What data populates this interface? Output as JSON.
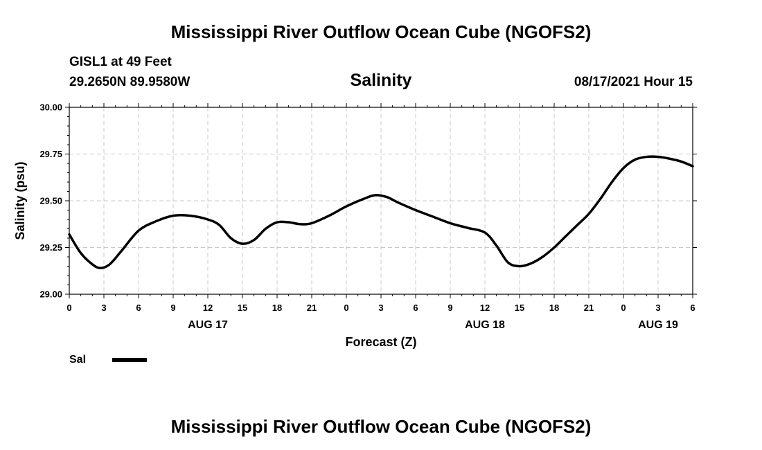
{
  "chart_data": {
    "type": "line",
    "title": "Mississippi River Outflow Ocean Cube (NGOFS2)",
    "footer_title": "Mississippi River Outflow Ocean Cube (NGOFS2)",
    "station": "GISL1 at 49 Feet",
    "location": "29.2650N  89.9580W",
    "variable": "Salinity",
    "forecast_time": "08/17/2021 Hour 15",
    "xlabel": "Forecast (Z)",
    "ylabel": "Salinity (psu)",
    "xlim": [
      0,
      54
    ],
    "ylim": [
      29.0,
      30.0
    ],
    "ytick_values": [
      29.0,
      29.25,
      29.5,
      29.75,
      30.0
    ],
    "ytick_labels": [
      "29.00",
      "29.25",
      "29.50",
      "29.75",
      "30.00"
    ],
    "xtick_values": [
      0,
      3,
      6,
      9,
      12,
      15,
      18,
      21,
      24,
      27,
      30,
      33,
      36,
      39,
      42,
      45,
      48,
      51,
      54
    ],
    "xtick_labels": [
      "0",
      "3",
      "6",
      "9",
      "12",
      "15",
      "18",
      "21",
      "0",
      "3",
      "6",
      "9",
      "12",
      "15",
      "18",
      "21",
      "0",
      "3",
      "6"
    ],
    "day_labels": [
      {
        "x": 12,
        "label": "AUG 17"
      },
      {
        "x": 36,
        "label": "AUG 18"
      },
      {
        "x": 51,
        "label": "AUG 19"
      }
    ],
    "grid": true,
    "series": [
      {
        "name": "Sal",
        "x": [
          0,
          1,
          2,
          2.7,
          3.5,
          4.5,
          6,
          7.5,
          9,
          10.5,
          12,
          13,
          14,
          15,
          16,
          17,
          18,
          19,
          20,
          21,
          22.5,
          24,
          25.5,
          26.5,
          27.5,
          28.5,
          30,
          31.5,
          33,
          34.5,
          36,
          37,
          38,
          39,
          40,
          41,
          42,
          43,
          44,
          45,
          46,
          47,
          48,
          49,
          50,
          51,
          52,
          53,
          54
        ],
        "values": [
          29.32,
          29.22,
          29.16,
          29.14,
          29.16,
          29.23,
          29.34,
          29.39,
          29.42,
          29.42,
          29.4,
          29.37,
          29.3,
          29.27,
          29.29,
          29.35,
          29.385,
          29.385,
          29.375,
          29.38,
          29.42,
          29.47,
          29.51,
          29.53,
          29.52,
          29.49,
          29.45,
          29.415,
          29.38,
          29.355,
          29.33,
          29.26,
          29.17,
          29.15,
          29.165,
          29.2,
          29.25,
          29.31,
          29.37,
          29.43,
          29.51,
          29.6,
          29.675,
          29.72,
          29.735,
          29.735,
          29.725,
          29.71,
          29.685
        ]
      }
    ],
    "legend": [
      {
        "label": "Sal"
      }
    ]
  }
}
